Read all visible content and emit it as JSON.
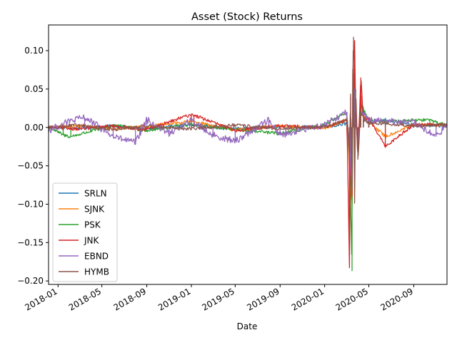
{
  "chart_data": {
    "type": "line",
    "title": "Asset (Stock) Returns",
    "xlabel": "Date",
    "ylabel": "",
    "x_range": [
      "2017-12-06",
      "2020-12-01"
    ],
    "ylim": [
      -0.2045,
      0.1335
    ],
    "x_ticks": [
      {
        "date": "2018-01-01",
        "label": "2018-01"
      },
      {
        "date": "2018-05-01",
        "label": "2018-05"
      },
      {
        "date": "2018-09-01",
        "label": "2018-09"
      },
      {
        "date": "2019-01-01",
        "label": "2019-01"
      },
      {
        "date": "2019-05-01",
        "label": "2019-05"
      },
      {
        "date": "2019-09-01",
        "label": "2019-09"
      },
      {
        "date": "2020-01-01",
        "label": "2020-01"
      },
      {
        "date": "2020-05-01",
        "label": "2020-05"
      },
      {
        "date": "2020-09-01",
        "label": "2020-09"
      }
    ],
    "y_ticks": [
      {
        "value": 0.1,
        "label": "0.10"
      },
      {
        "value": 0.05,
        "label": "0.05"
      },
      {
        "value": 0.0,
        "label": "0.00"
      },
      {
        "value": -0.05,
        "label": "−0.05"
      },
      {
        "value": -0.1,
        "label": "−0.10"
      },
      {
        "value": -0.15,
        "label": "−0.15"
      },
      {
        "value": -0.2,
        "label": "−0.20"
      }
    ],
    "grid": false,
    "legend_position": "lower-left",
    "series": [
      {
        "name": "SRLN",
        "color": "#1f77b4",
        "points": [
          [
            "2017-12-06",
            0.001
          ],
          [
            "2018-03-01",
            -0.001
          ],
          [
            "2018-06-01",
            0.002
          ],
          [
            "2018-09-01",
            -0.002
          ],
          [
            "2019-01-01",
            0.003
          ],
          [
            "2019-05-01",
            -0.002
          ],
          [
            "2019-09-01",
            0.001
          ],
          [
            "2020-01-01",
            0.0
          ],
          [
            "2020-03-02",
            0.005
          ],
          [
            "2020-03-09",
            -0.035
          ],
          [
            "2020-03-12",
            -0.06
          ],
          [
            "2020-03-16",
            -0.09
          ],
          [
            "2020-03-18",
            0.035
          ],
          [
            "2020-03-23",
            0.06
          ],
          [
            "2020-03-26",
            0.02
          ],
          [
            "2020-04-01",
            -0.03
          ],
          [
            "2020-04-09",
            0.04
          ],
          [
            "2020-04-16",
            0.012
          ],
          [
            "2020-05-01",
            0.006
          ],
          [
            "2020-06-15",
            0.01
          ],
          [
            "2020-09-01",
            0.003
          ],
          [
            "2020-12-01",
            0.002
          ]
        ]
      },
      {
        "name": "SJNK",
        "color": "#ff7f0e",
        "points": [
          [
            "2017-12-06",
            0.0
          ],
          [
            "2018-03-01",
            0.002
          ],
          [
            "2018-06-01",
            -0.002
          ],
          [
            "2018-09-01",
            0.001
          ],
          [
            "2019-01-01",
            0.008
          ],
          [
            "2019-05-01",
            -0.003
          ],
          [
            "2019-09-01",
            0.002
          ],
          [
            "2020-01-01",
            -0.001
          ],
          [
            "2020-03-02",
            0.01
          ],
          [
            "2020-03-09",
            -0.05
          ],
          [
            "2020-03-12",
            -0.08
          ],
          [
            "2020-03-16",
            -0.1
          ],
          [
            "2020-03-18",
            0.05
          ],
          [
            "2020-03-23",
            0.075
          ],
          [
            "2020-03-26",
            0.03
          ],
          [
            "2020-04-01",
            -0.035
          ],
          [
            "2020-04-09",
            0.045
          ],
          [
            "2020-04-16",
            0.015
          ],
          [
            "2020-05-01",
            0.008
          ],
          [
            "2020-06-15",
            -0.012
          ],
          [
            "2020-09-01",
            0.004
          ],
          [
            "2020-12-01",
            0.003
          ]
        ]
      },
      {
        "name": "PSK",
        "color": "#2ca02c",
        "points": [
          [
            "2017-12-06",
            0.001
          ],
          [
            "2018-01-15",
            -0.01
          ],
          [
            "2018-02-05",
            -0.012
          ],
          [
            "2018-06-01",
            0.003
          ],
          [
            "2018-09-01",
            -0.004
          ],
          [
            "2019-01-01",
            0.004
          ],
          [
            "2019-05-01",
            -0.003
          ],
          [
            "2019-09-01",
            -0.008
          ],
          [
            "2020-01-01",
            0.003
          ],
          [
            "2020-03-02",
            0.02
          ],
          [
            "2020-03-09",
            -0.04
          ],
          [
            "2020-03-12",
            -0.1
          ],
          [
            "2020-03-16",
            -0.187
          ],
          [
            "2020-03-18",
            0.06
          ],
          [
            "2020-03-23",
            0.07
          ],
          [
            "2020-03-26",
            0.015
          ],
          [
            "2020-04-01",
            -0.02
          ],
          [
            "2020-04-09",
            0.03
          ],
          [
            "2020-05-01",
            0.01
          ],
          [
            "2020-06-15",
            0.008
          ],
          [
            "2020-10-15",
            0.01
          ],
          [
            "2020-12-01",
            0.002
          ]
        ]
      },
      {
        "name": "JNK",
        "color": "#d62728",
        "points": [
          [
            "2017-12-06",
            0.0
          ],
          [
            "2018-03-01",
            -0.002
          ],
          [
            "2018-06-01",
            0.002
          ],
          [
            "2018-09-01",
            -0.003
          ],
          [
            "2019-01-01",
            0.017
          ],
          [
            "2019-01-08",
            0.016
          ],
          [
            "2019-05-01",
            -0.004
          ],
          [
            "2019-09-01",
            0.002
          ],
          [
            "2020-01-01",
            0.0
          ],
          [
            "2020-03-02",
            0.01
          ],
          [
            "2020-03-09",
            -0.183
          ],
          [
            "2020-03-12",
            0.04
          ],
          [
            "2020-03-16",
            -0.09
          ],
          [
            "2020-03-18",
            0.07
          ],
          [
            "2020-03-23",
            0.11
          ],
          [
            "2020-03-26",
            0.02
          ],
          [
            "2020-04-01",
            -0.04
          ],
          [
            "2020-04-09",
            0.065
          ],
          [
            "2020-04-16",
            0.01
          ],
          [
            "2020-05-01",
            0.012
          ],
          [
            "2020-06-15",
            -0.025
          ],
          [
            "2020-09-01",
            0.004
          ],
          [
            "2020-12-01",
            0.003
          ]
        ]
      },
      {
        "name": "EBND",
        "color": "#9467bd",
        "points": [
          [
            "2017-12-06",
            -0.004
          ],
          [
            "2018-02-01",
            0.008
          ],
          [
            "2018-03-15",
            0.013
          ],
          [
            "2018-06-01",
            -0.012
          ],
          [
            "2018-08-01",
            -0.02
          ],
          [
            "2018-09-01",
            0.01
          ],
          [
            "2018-11-01",
            -0.008
          ],
          [
            "2019-01-01",
            0.009
          ],
          [
            "2019-03-01",
            -0.01
          ],
          [
            "2019-05-01",
            -0.018
          ],
          [
            "2019-08-01",
            0.01
          ],
          [
            "2019-09-01",
            -0.01
          ],
          [
            "2020-01-01",
            0.004
          ],
          [
            "2020-03-02",
            0.02
          ],
          [
            "2020-03-09",
            -0.03
          ],
          [
            "2020-03-12",
            -0.05
          ],
          [
            "2020-03-16",
            -0.07
          ],
          [
            "2020-03-18",
            0.04
          ],
          [
            "2020-03-23",
            0.05
          ],
          [
            "2020-03-26",
            0.015
          ],
          [
            "2020-04-01",
            -0.02
          ],
          [
            "2020-04-09",
            0.02
          ],
          [
            "2020-05-01",
            0.01
          ],
          [
            "2020-09-01",
            0.006
          ],
          [
            "2020-11-01",
            -0.012
          ],
          [
            "2020-12-01",
            0.004
          ]
        ]
      },
      {
        "name": "HYMB",
        "color": "#8c564b",
        "points": [
          [
            "2017-12-06",
            0.0
          ],
          [
            "2018-03-01",
            0.003
          ],
          [
            "2018-06-01",
            -0.003
          ],
          [
            "2018-09-01",
            0.002
          ],
          [
            "2019-01-01",
            -0.002
          ],
          [
            "2019-05-01",
            0.003
          ],
          [
            "2019-09-01",
            -0.002
          ],
          [
            "2020-01-01",
            0.001
          ],
          [
            "2020-03-02",
            0.01
          ],
          [
            "2020-03-09",
            -0.035
          ],
          [
            "2020-03-12",
            0.044
          ],
          [
            "2020-03-16",
            -0.08
          ],
          [
            "2020-03-18",
            0.076
          ],
          [
            "2020-03-20",
            0.118
          ],
          [
            "2020-03-23",
            -0.095
          ],
          [
            "2020-03-26",
            0.05
          ],
          [
            "2020-04-01",
            -0.042
          ],
          [
            "2020-04-09",
            0.022
          ],
          [
            "2020-04-16",
            0.01
          ],
          [
            "2020-05-01",
            0.006
          ],
          [
            "2020-06-15",
            0.005
          ],
          [
            "2020-09-01",
            0.002
          ],
          [
            "2020-12-01",
            0.003
          ]
        ]
      }
    ]
  }
}
